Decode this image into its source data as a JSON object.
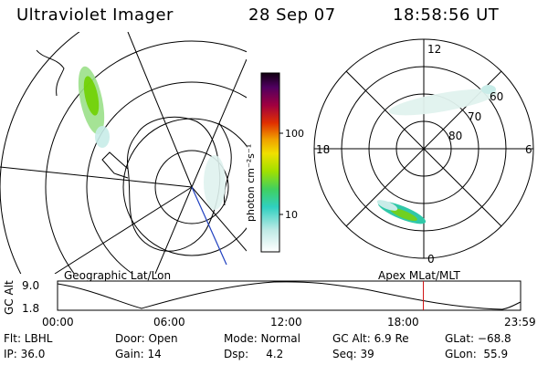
{
  "header": {
    "title": "Ultraviolet Imager",
    "date": "28 Sep 07",
    "time": "18:58:56 UT"
  },
  "colorbar": {
    "unit_label": "photon cm⁻²s⁻¹",
    "ticks": [
      "100",
      "10"
    ]
  },
  "left_map": {
    "caption": "Geographic Lat/Lon"
  },
  "right_map": {
    "caption": "Apex MLat/MLT",
    "mlt_labels": {
      "top": "12",
      "left": "18",
      "right": "6",
      "bottom": "0"
    },
    "lat_labels": [
      "60",
      "70",
      "80"
    ]
  },
  "orbit_plot": {
    "ylabel": "GC Alt",
    "yticks": [
      "9.0",
      "1.8"
    ],
    "xticks": [
      "00:00",
      "06:00",
      "12:00",
      "18:00",
      "23:59"
    ],
    "current_time_fraction": 0.79
  },
  "info": {
    "flt": "Flt: LBHL",
    "ip": "IP: 36.0",
    "door": "Door: Open",
    "gain": "Gain: 14",
    "mode": "Mode: Normal",
    "dsp": "Dsp:     4.2",
    "gcalt": "GC Alt: 6.9 Re",
    "seq": "Seq: 39",
    "glat": "GLat: −68.8",
    "glon": "GLon:  55.9"
  },
  "colors": {
    "emission_low": "#c8ece8",
    "emission_mid": "#40d0a0",
    "emission_high": "#90e000",
    "time_marker": "#d01010",
    "track_line": "#2040c0"
  }
}
